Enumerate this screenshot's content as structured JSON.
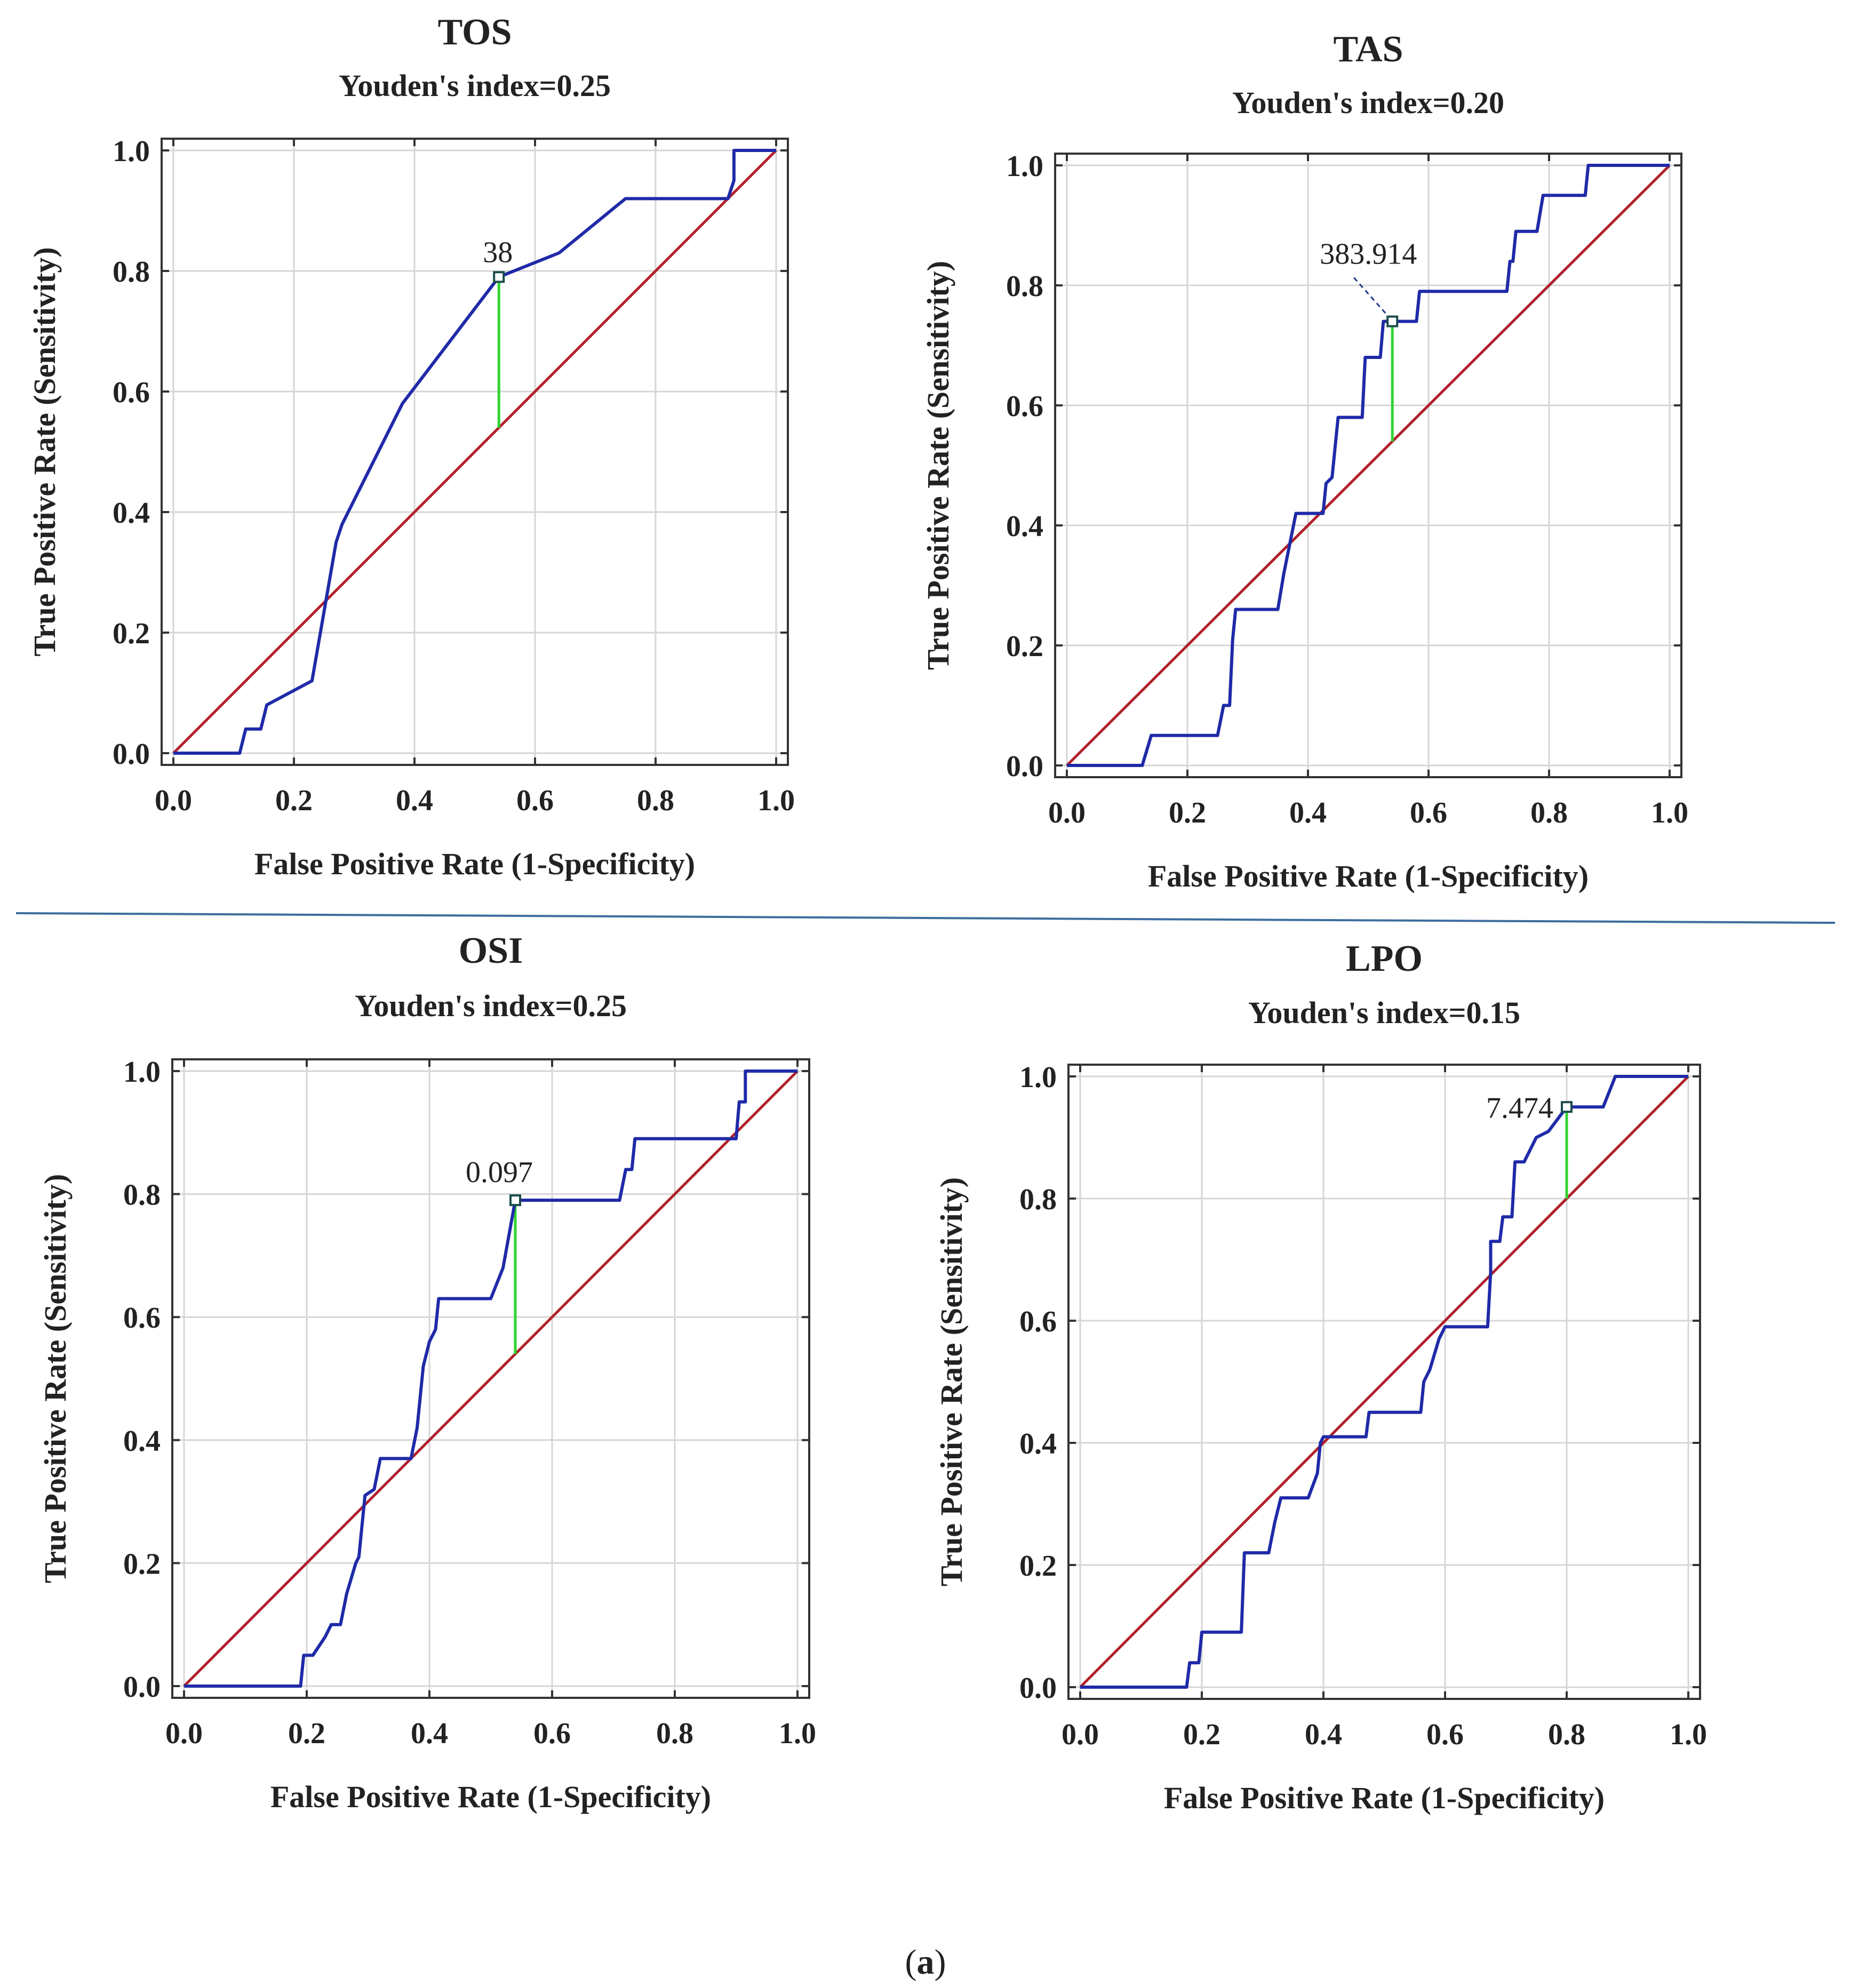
{
  "figure_caption": {
    "open": "(",
    "letter": "a",
    "close": ")"
  },
  "colors": {
    "roc_curve": "#1f2aa8",
    "reference_line": "#b0202a",
    "youden_line": "#2fd52f",
    "divider": "#3d6e9e"
  },
  "chart_data": [
    {
      "type": "line",
      "title": "TOS",
      "subtitle": "Youden's index=0.25",
      "xlabel": "False Positive Rate (1-Specificity)",
      "ylabel": "True Positive Rate (Sensitivity)",
      "xlim": [
        0,
        1
      ],
      "ylim": [
        0,
        1
      ],
      "xticks": [
        "0.0",
        "0.2",
        "0.4",
        "0.6",
        "0.8",
        "1.0"
      ],
      "yticks": [
        "0.0",
        "0.2",
        "0.4",
        "0.6",
        "0.8",
        "1.0"
      ],
      "grid": true,
      "cutoff": {
        "label": "38",
        "fpr": 0.54,
        "tpr": 0.79
      },
      "roc": [
        [
          0,
          0
        ],
        [
          0.11,
          0
        ],
        [
          0.12,
          0.04
        ],
        [
          0.145,
          0.04
        ],
        [
          0.155,
          0.08
        ],
        [
          0.23,
          0.12
        ],
        [
          0.27,
          0.35
        ],
        [
          0.28,
          0.38
        ],
        [
          0.38,
          0.58
        ],
        [
          0.54,
          0.79
        ],
        [
          0.64,
          0.83
        ],
        [
          0.75,
          0.92
        ],
        [
          0.92,
          0.92
        ],
        [
          0.93,
          0.95
        ],
        [
          0.93,
          1.0
        ],
        [
          1.0,
          1.0
        ]
      ],
      "reference": [
        [
          0,
          0
        ],
        [
          1,
          1
        ]
      ]
    },
    {
      "type": "line",
      "title": "TAS",
      "subtitle": "Youden's index=0.20",
      "xlabel": "False Positive Rate (1-Specificity)",
      "ylabel": "True Positive Rate (Sensitivity)",
      "xlim": [
        0,
        1
      ],
      "ylim": [
        0,
        1
      ],
      "xticks": [
        "0.0",
        "0.2",
        "0.4",
        "0.6",
        "0.8",
        "1.0"
      ],
      "yticks": [
        "0.0",
        "0.2",
        "0.4",
        "0.6",
        "0.8",
        "1.0"
      ],
      "grid": true,
      "cutoff": {
        "label": "383.914",
        "fpr": 0.54,
        "tpr": 0.74
      },
      "roc": [
        [
          0,
          0
        ],
        [
          0.125,
          0
        ],
        [
          0.14,
          0.05
        ],
        [
          0.25,
          0.05
        ],
        [
          0.26,
          0.1
        ],
        [
          0.27,
          0.1
        ],
        [
          0.275,
          0.21
        ],
        [
          0.28,
          0.26
        ],
        [
          0.35,
          0.26
        ],
        [
          0.36,
          0.32
        ],
        [
          0.37,
          0.37
        ],
        [
          0.38,
          0.42
        ],
        [
          0.425,
          0.42
        ],
        [
          0.43,
          0.47
        ],
        [
          0.44,
          0.48
        ],
        [
          0.445,
          0.53
        ],
        [
          0.45,
          0.58
        ],
        [
          0.49,
          0.58
        ],
        [
          0.495,
          0.68
        ],
        [
          0.52,
          0.68
        ],
        [
          0.525,
          0.74
        ],
        [
          0.58,
          0.74
        ],
        [
          0.585,
          0.79
        ],
        [
          0.73,
          0.79
        ],
        [
          0.735,
          0.84
        ],
        [
          0.74,
          0.84
        ],
        [
          0.745,
          0.89
        ],
        [
          0.78,
          0.89
        ],
        [
          0.79,
          0.95
        ],
        [
          0.86,
          0.95
        ],
        [
          0.865,
          1.0
        ],
        [
          1.0,
          1.0
        ]
      ],
      "reference": [
        [
          0,
          0
        ],
        [
          1,
          1
        ]
      ]
    },
    {
      "type": "line",
      "title": "OSI",
      "subtitle": "Youden's index=0.25",
      "xlabel": "False Positive Rate (1-Specificity)",
      "ylabel": "True Positive Rate (Sensitivity)",
      "xlim": [
        0,
        1
      ],
      "ylim": [
        0,
        1
      ],
      "xticks": [
        "0.0",
        "0.2",
        "0.4",
        "0.6",
        "0.8",
        "1.0"
      ],
      "yticks": [
        "0.0",
        "0.2",
        "0.4",
        "0.6",
        "0.8",
        "1.0"
      ],
      "grid": true,
      "cutoff": {
        "label": "0.097",
        "fpr": 0.54,
        "tpr": 0.79
      },
      "roc": [
        [
          0,
          0
        ],
        [
          0.19,
          0
        ],
        [
          0.195,
          0.05
        ],
        [
          0.21,
          0.05
        ],
        [
          0.23,
          0.08
        ],
        [
          0.24,
          0.1
        ],
        [
          0.255,
          0.1
        ],
        [
          0.265,
          0.15
        ],
        [
          0.28,
          0.2
        ],
        [
          0.285,
          0.21
        ],
        [
          0.29,
          0.26
        ],
        [
          0.295,
          0.31
        ],
        [
          0.31,
          0.32
        ],
        [
          0.32,
          0.37
        ],
        [
          0.37,
          0.37
        ],
        [
          0.38,
          0.42
        ],
        [
          0.39,
          0.52
        ],
        [
          0.4,
          0.56
        ],
        [
          0.41,
          0.58
        ],
        [
          0.415,
          0.63
        ],
        [
          0.5,
          0.63
        ],
        [
          0.52,
          0.68
        ],
        [
          0.54,
          0.79
        ],
        [
          0.71,
          0.79
        ],
        [
          0.72,
          0.84
        ],
        [
          0.73,
          0.84
        ],
        [
          0.735,
          0.89
        ],
        [
          0.9,
          0.89
        ],
        [
          0.905,
          0.95
        ],
        [
          0.915,
          0.95
        ],
        [
          0.915,
          1.0
        ],
        [
          1.0,
          1.0
        ]
      ],
      "reference": [
        [
          0,
          0
        ],
        [
          1,
          1
        ]
      ]
    },
    {
      "type": "line",
      "title": "LPO",
      "subtitle": "Youden's index=0.15",
      "xlabel": "False Positive Rate (1-Specificity)",
      "ylabel": "True Positive Rate (Sensitivity)",
      "xlim": [
        0,
        1
      ],
      "ylim": [
        0,
        1
      ],
      "xticks": [
        "0.0",
        "0.2",
        "0.4",
        "0.6",
        "0.8",
        "1.0"
      ],
      "yticks": [
        "0.0",
        "0.2",
        "0.4",
        "0.6",
        "0.8",
        "1.0"
      ],
      "grid": true,
      "cutoff": {
        "label": "7.474",
        "fpr": 0.8,
        "tpr": 0.95
      },
      "roc": [
        [
          0,
          0
        ],
        [
          0.175,
          0
        ],
        [
          0.18,
          0.04
        ],
        [
          0.195,
          0.04
        ],
        [
          0.2,
          0.09
        ],
        [
          0.265,
          0.09
        ],
        [
          0.27,
          0.22
        ],
        [
          0.31,
          0.22
        ],
        [
          0.32,
          0.27
        ],
        [
          0.33,
          0.31
        ],
        [
          0.375,
          0.31
        ],
        [
          0.39,
          0.35
        ],
        [
          0.395,
          0.4
        ],
        [
          0.4,
          0.41
        ],
        [
          0.47,
          0.41
        ],
        [
          0.475,
          0.45
        ],
        [
          0.56,
          0.45
        ],
        [
          0.565,
          0.5
        ],
        [
          0.575,
          0.52
        ],
        [
          0.59,
          0.57
        ],
        [
          0.6,
          0.59
        ],
        [
          0.67,
          0.59
        ],
        [
          0.675,
          0.68
        ],
        [
          0.675,
          0.73
        ],
        [
          0.69,
          0.73
        ],
        [
          0.695,
          0.77
        ],
        [
          0.71,
          0.77
        ],
        [
          0.715,
          0.86
        ],
        [
          0.73,
          0.86
        ],
        [
          0.75,
          0.9
        ],
        [
          0.77,
          0.91
        ],
        [
          0.8,
          0.95
        ],
        [
          0.86,
          0.95
        ],
        [
          0.88,
          1.0
        ],
        [
          1.0,
          1.0
        ]
      ],
      "reference": [
        [
          0,
          0
        ],
        [
          1,
          1
        ]
      ]
    }
  ]
}
